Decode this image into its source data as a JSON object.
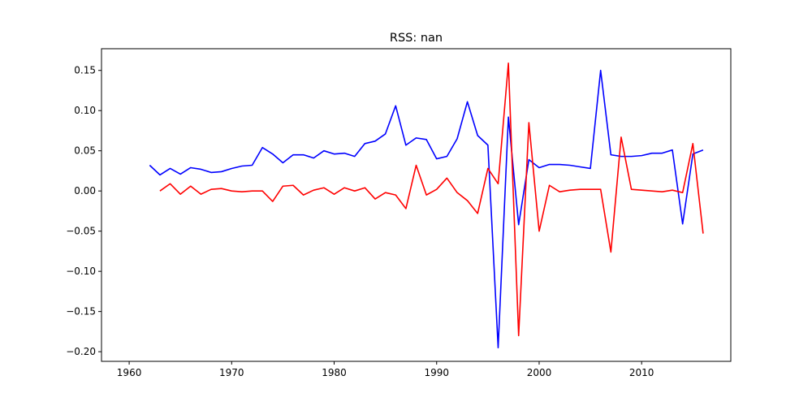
{
  "chart_data": {
    "type": "line",
    "title": "RSS: nan",
    "xlabel": "",
    "ylabel": "",
    "xlim": [
      1957.3,
      2018.7
    ],
    "ylim": [
      -0.212,
      0.177
    ],
    "xticks": [
      1960,
      1970,
      1980,
      1990,
      2000,
      2010
    ],
    "yticks": [
      -0.2,
      -0.15,
      -0.1,
      -0.05,
      0.0,
      0.05,
      0.1,
      0.15
    ],
    "ytick_labels": [
      "−0.20",
      "−0.15",
      "−0.10",
      "−0.05",
      "0.00",
      "0.05",
      "0.10",
      "0.15"
    ],
    "grid": false,
    "legend": "none",
    "series": [
      {
        "color": "#0000ff",
        "x": [
          1962,
          1963,
          1964,
          1965,
          1966,
          1967,
          1968,
          1969,
          1970,
          1971,
          1972,
          1973,
          1974,
          1975,
          1976,
          1977,
          1978,
          1979,
          1980,
          1981,
          1982,
          1983,
          1984,
          1985,
          1986,
          1987,
          1988,
          1989,
          1990,
          1991,
          1992,
          1993,
          1994,
          1995,
          1996,
          1997,
          1998,
          1999,
          2000,
          2001,
          2002,
          2003,
          2004,
          2005,
          2006,
          2007,
          2008,
          2009,
          2010,
          2011,
          2012,
          2013,
          2014,
          2015,
          2016
        ],
        "y": [
          0.032,
          0.02,
          0.028,
          0.021,
          0.029,
          0.027,
          0.023,
          0.024,
          0.028,
          0.031,
          0.032,
          0.054,
          0.046,
          0.035,
          0.045,
          0.045,
          0.041,
          0.05,
          0.046,
          0.047,
          0.043,
          0.059,
          0.062,
          0.071,
          0.106,
          0.057,
          0.066,
          0.064,
          0.04,
          0.043,
          0.065,
          0.111,
          0.069,
          0.057,
          -0.195,
          0.092,
          -0.042,
          0.039,
          0.029,
          0.033,
          0.033,
          0.032,
          0.03,
          0.028,
          0.15,
          0.045,
          0.043,
          0.043,
          0.044,
          0.047,
          0.047,
          0.051,
          -0.041,
          0.046,
          0.051
        ]
      },
      {
        "color": "#ff0000",
        "x": [
          1963,
          1964,
          1965,
          1966,
          1967,
          1968,
          1969,
          1970,
          1971,
          1972,
          1973,
          1974,
          1975,
          1976,
          1977,
          1978,
          1979,
          1980,
          1981,
          1982,
          1983,
          1984,
          1985,
          1986,
          1987,
          1988,
          1989,
          1990,
          1991,
          1992,
          1993,
          1994,
          1995,
          1996,
          1997,
          1998,
          1999,
          2000,
          2001,
          2002,
          2003,
          2004,
          2005,
          2006,
          2007,
          2008,
          2009,
          2010,
          2011,
          2012,
          2013,
          2014,
          2015,
          2016
        ],
        "y": [
          0.0,
          0.009,
          -0.004,
          0.006,
          -0.004,
          0.002,
          0.003,
          0.0,
          -0.001,
          0.0,
          0.0,
          -0.013,
          0.006,
          0.007,
          -0.005,
          0.001,
          0.004,
          -0.004,
          0.004,
          0.0,
          0.004,
          -0.01,
          -0.002,
          -0.005,
          -0.022,
          0.032,
          -0.005,
          0.002,
          0.016,
          -0.002,
          -0.012,
          -0.028,
          0.028,
          0.009,
          0.159,
          -0.18,
          0.085,
          -0.05,
          0.007,
          -0.001,
          0.001,
          0.002,
          0.002,
          0.002,
          -0.076,
          0.067,
          0.002,
          0.001,
          0.0,
          -0.001,
          0.001,
          -0.002,
          0.059,
          -0.053
        ]
      }
    ]
  }
}
